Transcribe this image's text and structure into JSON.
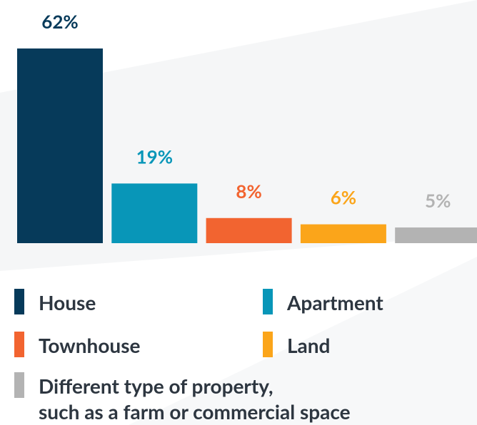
{
  "chart_data": {
    "type": "bar",
    "categories": [
      "House",
      "Apartment",
      "Townhouse",
      "Land",
      "Different type of property,\nsuch as a farm or commercial space"
    ],
    "values": [
      62,
      19,
      8,
      6,
      5
    ],
    "value_labels": [
      "62%",
      "19%",
      "8%",
      "6%",
      "5%"
    ],
    "colors": [
      "#063a5a",
      "#0896b8",
      "#f26430",
      "#fba51a",
      "#b3b3b3"
    ],
    "ylim": [
      0,
      62
    ],
    "legend": "bottom"
  }
}
